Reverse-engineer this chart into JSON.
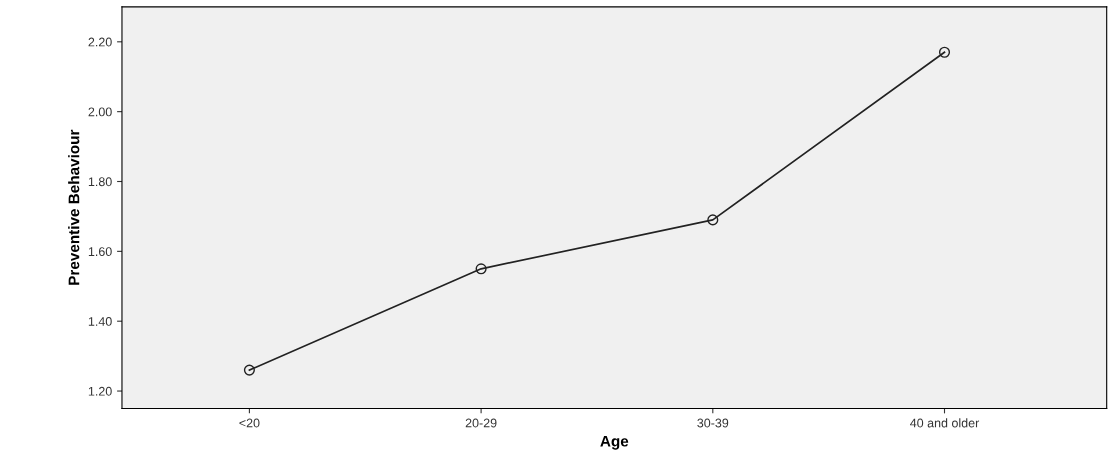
{
  "chart_data": {
    "type": "line",
    "xlabel": "Age",
    "ylabel": "Preventive Behaviour",
    "categories": [
      "<20",
      "20-29",
      "30-39",
      "40 and older"
    ],
    "series": [
      {
        "color": "#222222",
        "values": [
          1.26,
          1.55,
          1.69,
          2.17
        ]
      }
    ],
    "marker": "circle",
    "line_style": "solid",
    "ylim": [
      1.15,
      2.3
    ],
    "yticks": [
      {
        "value": 1.2,
        "label": "1.20"
      },
      {
        "value": 1.4,
        "label": "1.40"
      },
      {
        "value": 1.6,
        "label": "1.60"
      },
      {
        "value": 1.8,
        "label": "1.80"
      },
      {
        "value": 2.0,
        "label": "2.00"
      },
      {
        "value": 2.2,
        "label": "2.20"
      }
    ],
    "grid": false,
    "legend": false
  }
}
